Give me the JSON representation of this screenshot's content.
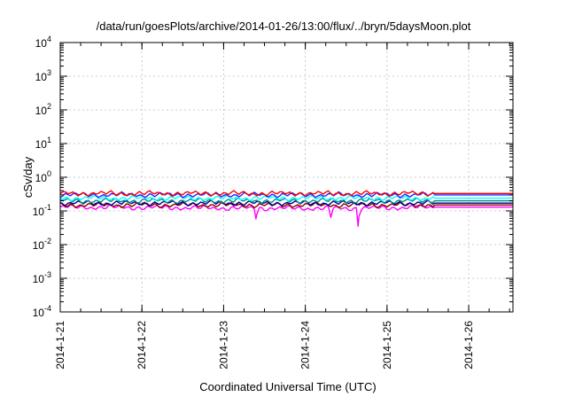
{
  "chart_data": {
    "type": "line",
    "title": "/data/run/goesPlots/archive/2014-01-26/13:00/flux/../bryn/5daysMoon.plot",
    "xlabel": "Coordinated Universal Time (UTC)",
    "ylabel": "cSv/day",
    "xscale": "time",
    "yscale": "log",
    "xlim": [
      "2014-01-21T00:00",
      "2014-01-26T13:00"
    ],
    "ylim": [
      0.0001,
      10000
    ],
    "grid": true,
    "x_ticks": [
      "2014-1-21",
      "2014-1-22",
      "2014-1-23",
      "2014-1-24",
      "2014-1-25",
      "2014-1-26"
    ],
    "y_ticks": [
      {
        "value": 0.0001,
        "base": "10",
        "exp": "-4"
      },
      {
        "value": 0.001,
        "base": "10",
        "exp": "-3"
      },
      {
        "value": 0.01,
        "base": "10",
        "exp": "-2"
      },
      {
        "value": 0.1,
        "base": "10",
        "exp": "-1"
      },
      {
        "value": 1,
        "base": "10",
        "exp": "0"
      },
      {
        "value": 10,
        "base": "10",
        "exp": "1"
      },
      {
        "value": 100,
        "base": "10",
        "exp": "2"
      },
      {
        "value": 1000,
        "base": "10",
        "exp": "3"
      },
      {
        "value": 10000,
        "base": "10",
        "exp": "4"
      }
    ],
    "series": [
      {
        "color": "#ff00ff",
        "base": 0.13,
        "x": [
          "2014-01-21T00:00",
          "2014-01-23T09:00",
          "2014-01-23T09:30",
          "2014-01-23T10:00",
          "2014-01-24T07:00",
          "2014-01-24T07:30",
          "2014-01-24T08:00",
          "2014-01-24T15:00",
          "2014-01-24T15:30",
          "2014-01-24T16:00",
          "2014-01-25T14:00",
          "2014-01-26T13:00"
        ],
        "y": [
          0.13,
          0.12,
          0.058,
          0.12,
          0.12,
          0.065,
          0.12,
          0.12,
          0.035,
          0.12,
          0.13,
          0.13
        ]
      },
      {
        "color": "#8b0000",
        "base": 0.15,
        "x": [
          "2014-01-21T00:00",
          "2014-01-25T14:00",
          "2014-01-26T13:00"
        ],
        "y": [
          0.15,
          0.15,
          0.15
        ]
      },
      {
        "color": "#000080",
        "base": 0.17,
        "x": [
          "2014-01-21T00:00",
          "2014-01-25T14:00",
          "2014-01-26T13:00"
        ],
        "y": [
          0.17,
          0.17,
          0.17
        ]
      },
      {
        "color": "#008b8b",
        "base": 0.2,
        "x": [
          "2014-01-21T00:00",
          "2014-01-25T14:00",
          "2014-01-26T13:00"
        ],
        "y": [
          0.2,
          0.2,
          0.2
        ]
      },
      {
        "color": "#00ffff",
        "base": 0.24,
        "x": [
          "2014-01-21T00:00",
          "2014-01-25T14:00",
          "2014-01-26T13:00"
        ],
        "y": [
          0.24,
          0.24,
          0.24
        ]
      },
      {
        "color": "#2222ff",
        "base": 0.3,
        "x": [
          "2014-01-21T00:00",
          "2014-01-25T14:00",
          "2014-01-26T13:00"
        ],
        "y": [
          0.3,
          0.3,
          0.3
        ]
      },
      {
        "color": "#ff0000",
        "base": 0.33,
        "x": [
          "2014-01-21T00:00",
          "2014-01-25T14:00",
          "2014-01-26T13:00"
        ],
        "y": [
          0.33,
          0.33,
          0.33
        ]
      }
    ]
  }
}
